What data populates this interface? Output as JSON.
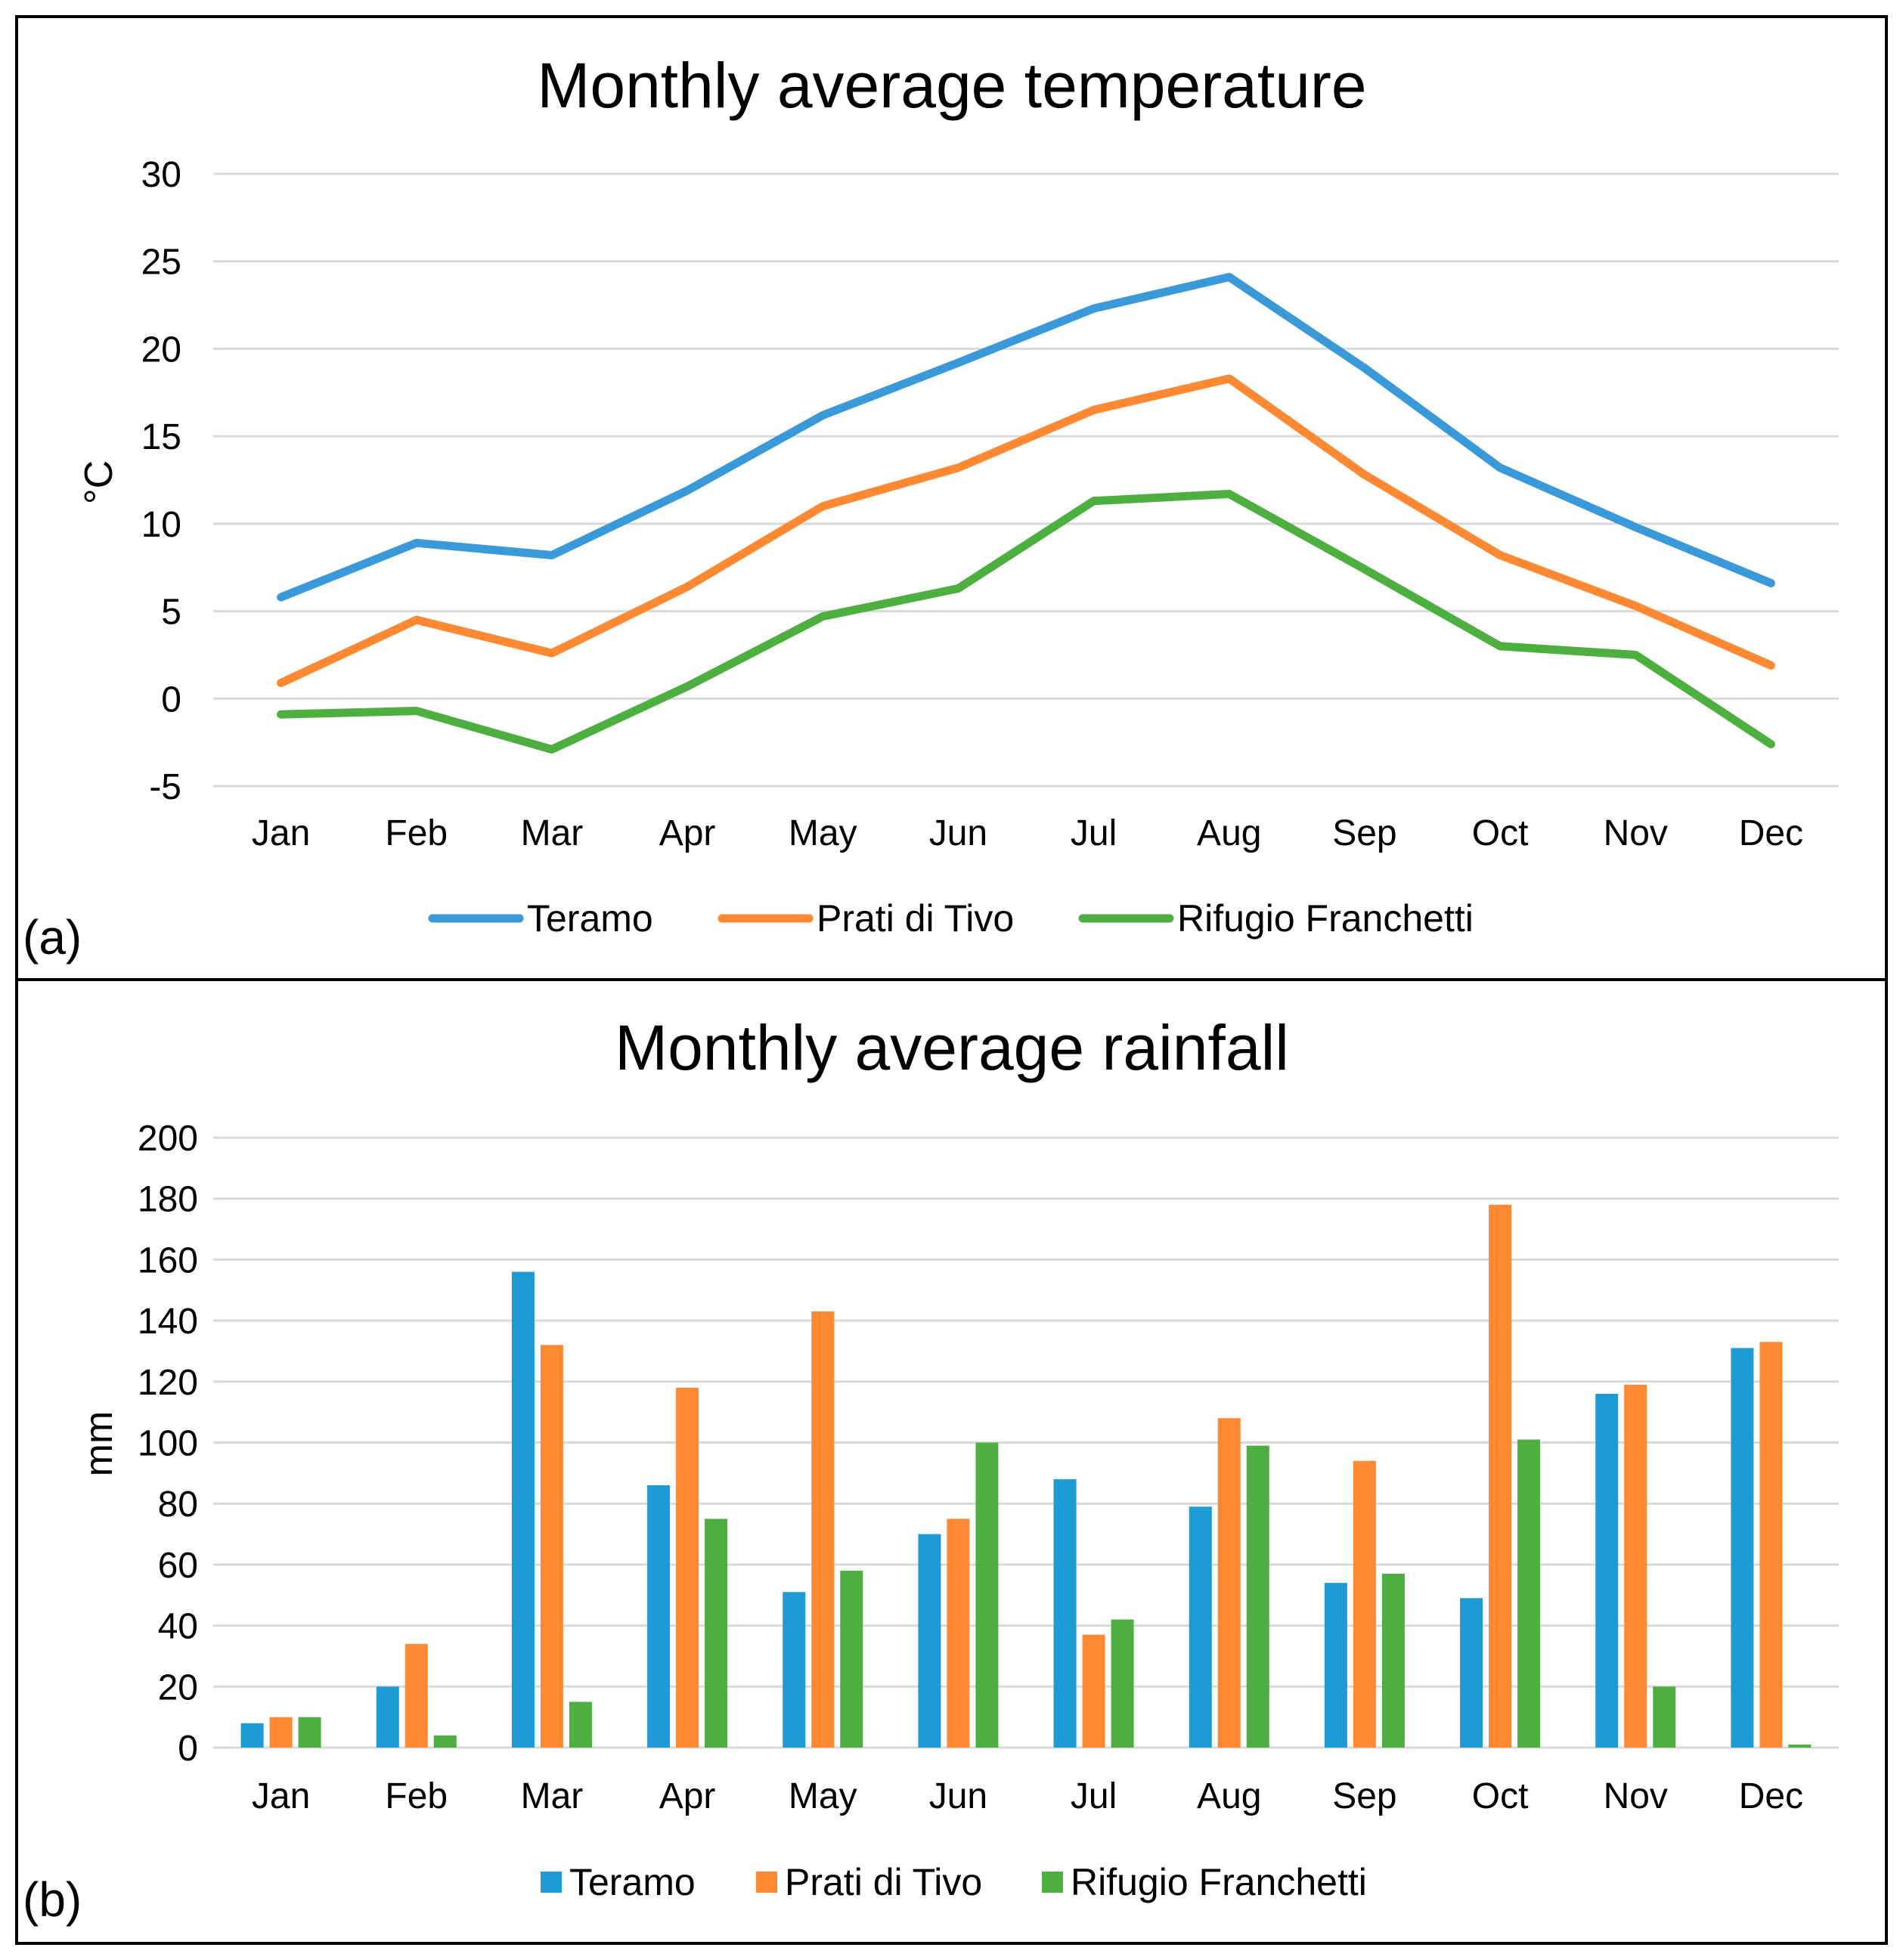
{
  "chart_data": [
    {
      "panel_label": "(a)",
      "type": "line",
      "title": "Monthly average temperature",
      "xlabel": "",
      "ylabel": "°C",
      "ylim": [
        -5,
        30
      ],
      "yticks": [
        -5,
        0,
        5,
        10,
        15,
        20,
        25,
        30
      ],
      "categories": [
        "Jan",
        "Feb",
        "Mar",
        "Apr",
        "May",
        "Jun",
        "Jul",
        "Aug",
        "Sep",
        "Oct",
        "Nov",
        "Dec"
      ],
      "grid": true,
      "legend_position": "bottom",
      "series": [
        {
          "name": "Teramo",
          "color": "#3a9ad9",
          "values": [
            5.8,
            8.9,
            8.2,
            11.9,
            16.2,
            19.2,
            22.3,
            24.1,
            18.9,
            13.2,
            9.8,
            6.6
          ]
        },
        {
          "name": "Prati di Tivo",
          "color": "#ff8833",
          "values": [
            0.9,
            4.5,
            2.6,
            6.4,
            11.0,
            13.2,
            16.5,
            18.3,
            12.8,
            8.2,
            5.3,
            1.9
          ]
        },
        {
          "name": "Rifugio Franchetti",
          "color": "#4caf3f",
          "values": [
            -0.9,
            -0.7,
            -2.9,
            0.7,
            4.7,
            6.3,
            11.3,
            11.7,
            7.4,
            3.0,
            2.5,
            -2.6
          ]
        }
      ]
    },
    {
      "panel_label": "(b)",
      "type": "bar",
      "title": "Monthly average rainfall",
      "xlabel": "",
      "ylabel": "mm",
      "ylim": [
        0,
        200
      ],
      "yticks": [
        0,
        20,
        40,
        60,
        80,
        100,
        120,
        140,
        160,
        180,
        200
      ],
      "categories": [
        "Jan",
        "Feb",
        "Mar",
        "Apr",
        "May",
        "Jun",
        "Jul",
        "Aug",
        "Sep",
        "Oct",
        "Nov",
        "Dec"
      ],
      "grid": true,
      "legend_position": "bottom",
      "series": [
        {
          "name": "Teramo",
          "color": "#1e9ad6",
          "values": [
            8,
            20,
            156,
            86,
            51,
            70,
            88,
            79,
            54,
            49,
            116,
            131
          ]
        },
        {
          "name": "Prati di Tivo",
          "color": "#ff8833",
          "values": [
            10,
            34,
            132,
            118,
            143,
            75,
            37,
            108,
            94,
            178,
            119,
            133
          ]
        },
        {
          "name": "Rifugio Franchetti",
          "color": "#4caf3f",
          "values": [
            10,
            4,
            15,
            75,
            58,
            100,
            42,
            99,
            57,
            101,
            20,
            1
          ]
        }
      ]
    }
  ]
}
